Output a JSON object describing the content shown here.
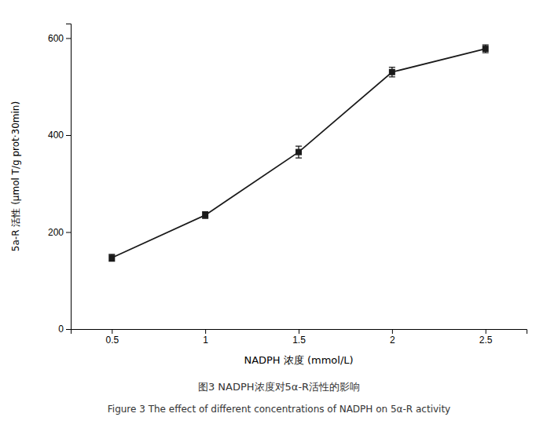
{
  "chart_data": {
    "type": "line",
    "x_label": "NADPH 浓度 (mmol/L)",
    "y_label": "5a-R 活性 (μmol T/g prot·30min)",
    "x": [
      0.5,
      1.0,
      1.5,
      2.0,
      2.5
    ],
    "values": [
      147,
      235,
      365,
      530,
      578
    ],
    "errors": [
      7,
      7,
      12,
      10,
      8
    ],
    "xlim": [
      0.28,
      2.72
    ],
    "xticks": [
      0.5,
      1.0,
      1.5,
      2.0,
      2.5
    ],
    "ylim": [
      0,
      630
    ],
    "yticks": [
      0,
      200,
      400,
      600
    ],
    "color": "#1a1a1a",
    "marker": "square",
    "line_style": "solid",
    "annotations": [
      "图3 NADPH浓度对5α-R活性的影响",
      "Figure 3 The effect of different concentrations of NADPH on 5α-R activity"
    ]
  }
}
